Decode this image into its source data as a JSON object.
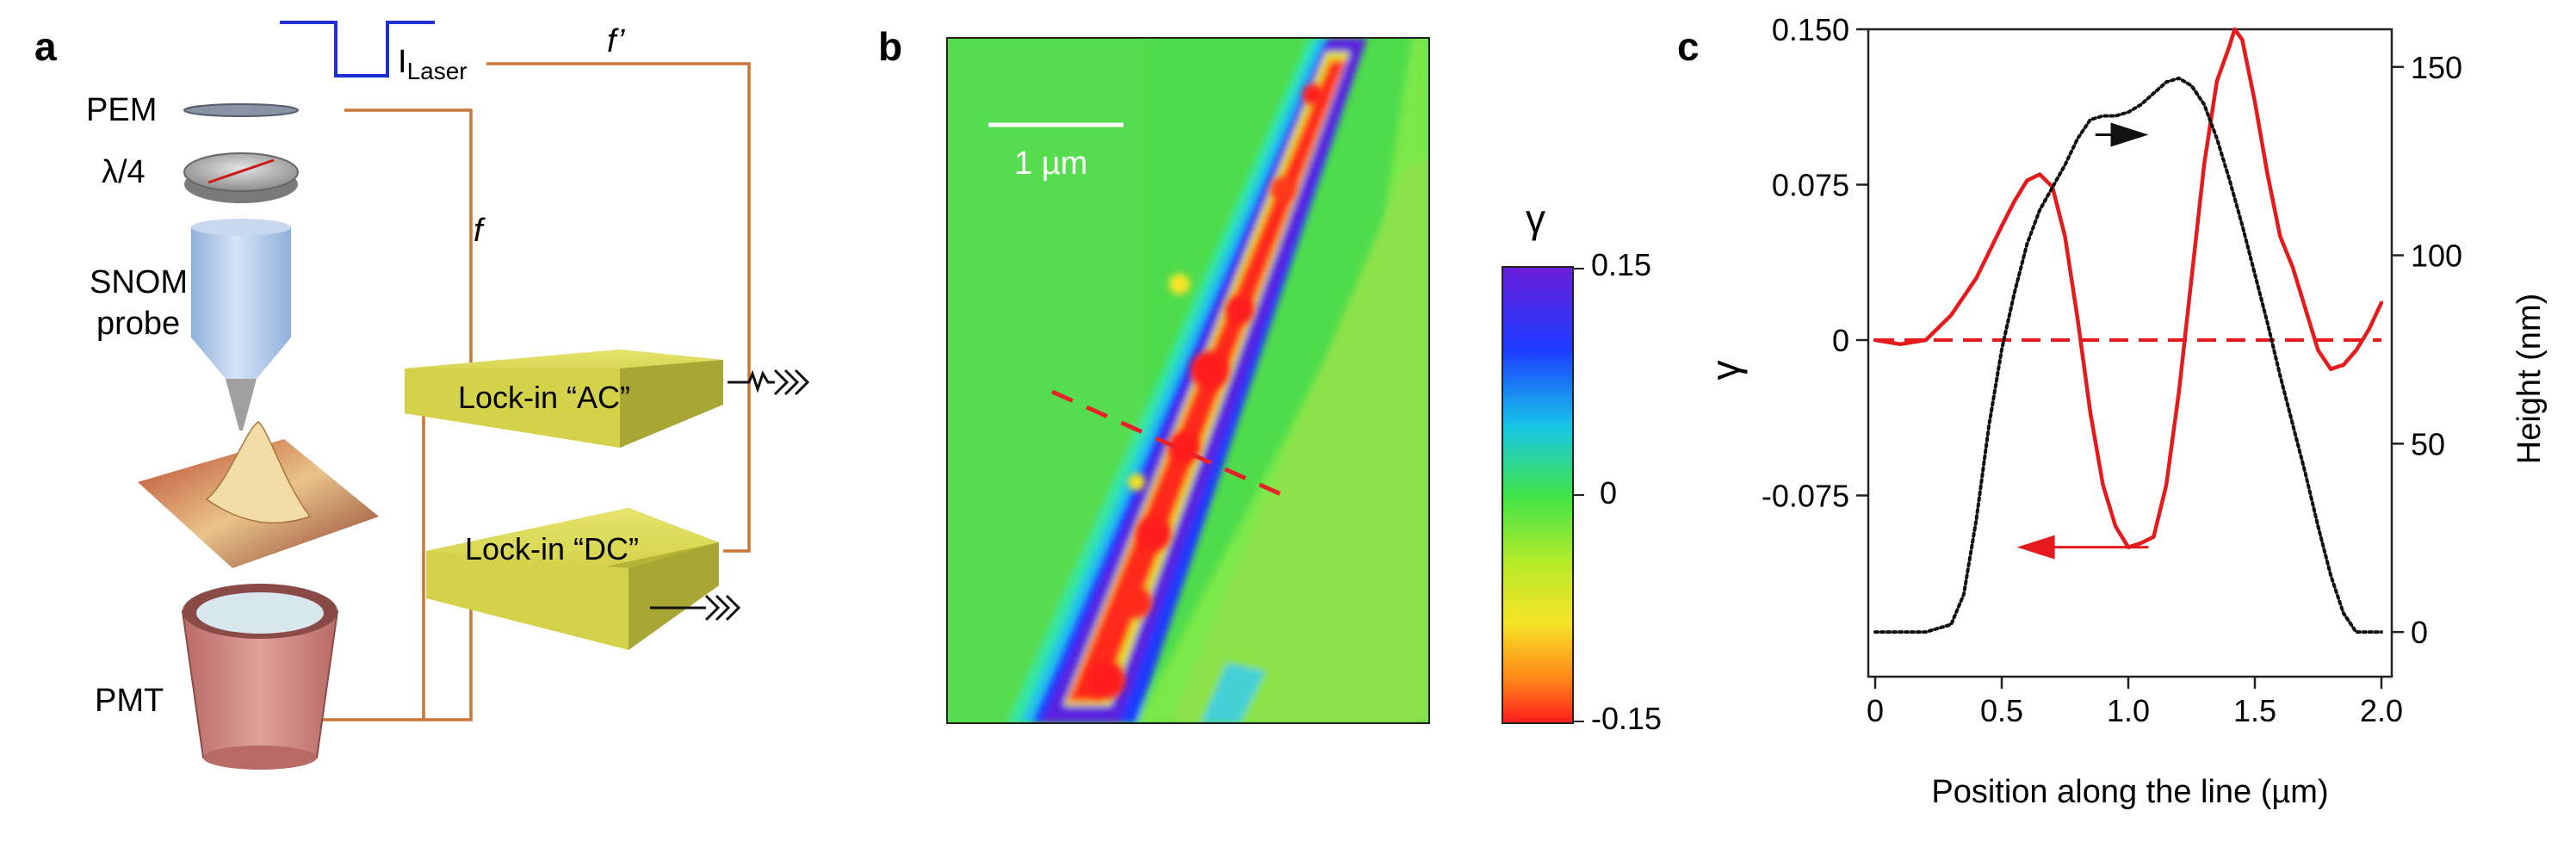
{
  "panel_a": {
    "letter": "a",
    "labels": {
      "pem": "PEM",
      "lambda4": "λ/4",
      "snom_line1": "SNOM",
      "snom_line2": "probe",
      "pmt": "PMT",
      "laser_main": "I",
      "laser_sub": "Laser",
      "f": "f",
      "f_prime": "f’",
      "lockin_ac": "Lock-in “AC”",
      "lockin_dc": "Lock-in “DC”"
    },
    "colors": {
      "wire": "#c8763a",
      "laser_pulse": "#1f2fd0",
      "lockin_box": "#d4d24a",
      "probe": "#a8c2e6",
      "pmt": "#d08a86"
    }
  },
  "panel_b": {
    "letter": "b",
    "scale_bar_label": "1 µm",
    "colorbar": {
      "symbol": "γ",
      "ticks": [
        "0.15",
        "0",
        "-0.15"
      ]
    }
  },
  "panel_c": {
    "letter": "c"
  },
  "chart_data": {
    "type": "line",
    "xlabel": "Position along the line (µm)",
    "ylabel_left": "γ",
    "ylabel_right": "Height (nm)",
    "xlim": [
      0,
      2.0
    ],
    "ylim_left": [
      -0.15,
      0.15
    ],
    "ylim_right": [
      -5,
      160
    ],
    "x_ticks": [
      "0",
      "0.5",
      "1.0",
      "1.5",
      "2.0"
    ],
    "y_left_ticks": [
      "0.150",
      "0.075",
      "0",
      "-0.075"
    ],
    "y_right_ticks": [
      "150",
      "100",
      "50",
      "0"
    ],
    "reference_line": {
      "y": 0,
      "style": "dashed",
      "color": "#e41a1c"
    },
    "series": [
      {
        "axis": "left",
        "color": "#e41a1c",
        "style": "solid",
        "x": [
          0,
          0.1,
          0.2,
          0.3,
          0.4,
          0.5,
          0.55,
          0.6,
          0.65,
          0.7,
          0.75,
          0.8,
          0.85,
          0.9,
          0.95,
          1.0,
          1.05,
          1.1,
          1.15,
          1.2,
          1.25,
          1.3,
          1.35,
          1.4,
          1.42,
          1.45,
          1.5,
          1.55,
          1.6,
          1.65,
          1.7,
          1.75,
          1.8,
          1.85,
          1.9,
          1.95,
          2.0
        ],
        "y": [
          0.0,
          -0.002,
          0.0,
          0.012,
          0.03,
          0.055,
          0.067,
          0.077,
          0.08,
          0.074,
          0.05,
          0.01,
          -0.035,
          -0.07,
          -0.09,
          -0.1,
          -0.098,
          -0.095,
          -0.07,
          -0.025,
          0.03,
          0.085,
          0.125,
          0.142,
          0.15,
          0.145,
          0.115,
          0.08,
          0.05,
          0.035,
          0.015,
          -0.005,
          -0.014,
          -0.012,
          -0.005,
          0.005,
          0.018
        ]
      },
      {
        "axis": "right",
        "color": "#111111",
        "style": "dotted",
        "x": [
          0,
          0.1,
          0.2,
          0.3,
          0.35,
          0.4,
          0.45,
          0.5,
          0.55,
          0.6,
          0.65,
          0.7,
          0.75,
          0.8,
          0.85,
          0.9,
          0.95,
          1.0,
          1.05,
          1.1,
          1.15,
          1.2,
          1.25,
          1.3,
          1.35,
          1.4,
          1.45,
          1.5,
          1.55,
          1.6,
          1.65,
          1.7,
          1.75,
          1.8,
          1.85,
          1.9,
          1.95,
          2.0
        ],
        "y": [
          0,
          0,
          0,
          2,
          10,
          30,
          55,
          75,
          90,
          103,
          112,
          118,
          124,
          131,
          136,
          137,
          137,
          138,
          140,
          143,
          146,
          147,
          145,
          140,
          131,
          120,
          108,
          95,
          82,
          68,
          55,
          42,
          28,
          15,
          5,
          0,
          0,
          0
        ]
      }
    ],
    "annotations": [
      {
        "type": "arrow",
        "points_to": "right",
        "color": "#111111"
      },
      {
        "type": "arrow",
        "points_to": "left",
        "color": "#e41a1c"
      }
    ]
  }
}
